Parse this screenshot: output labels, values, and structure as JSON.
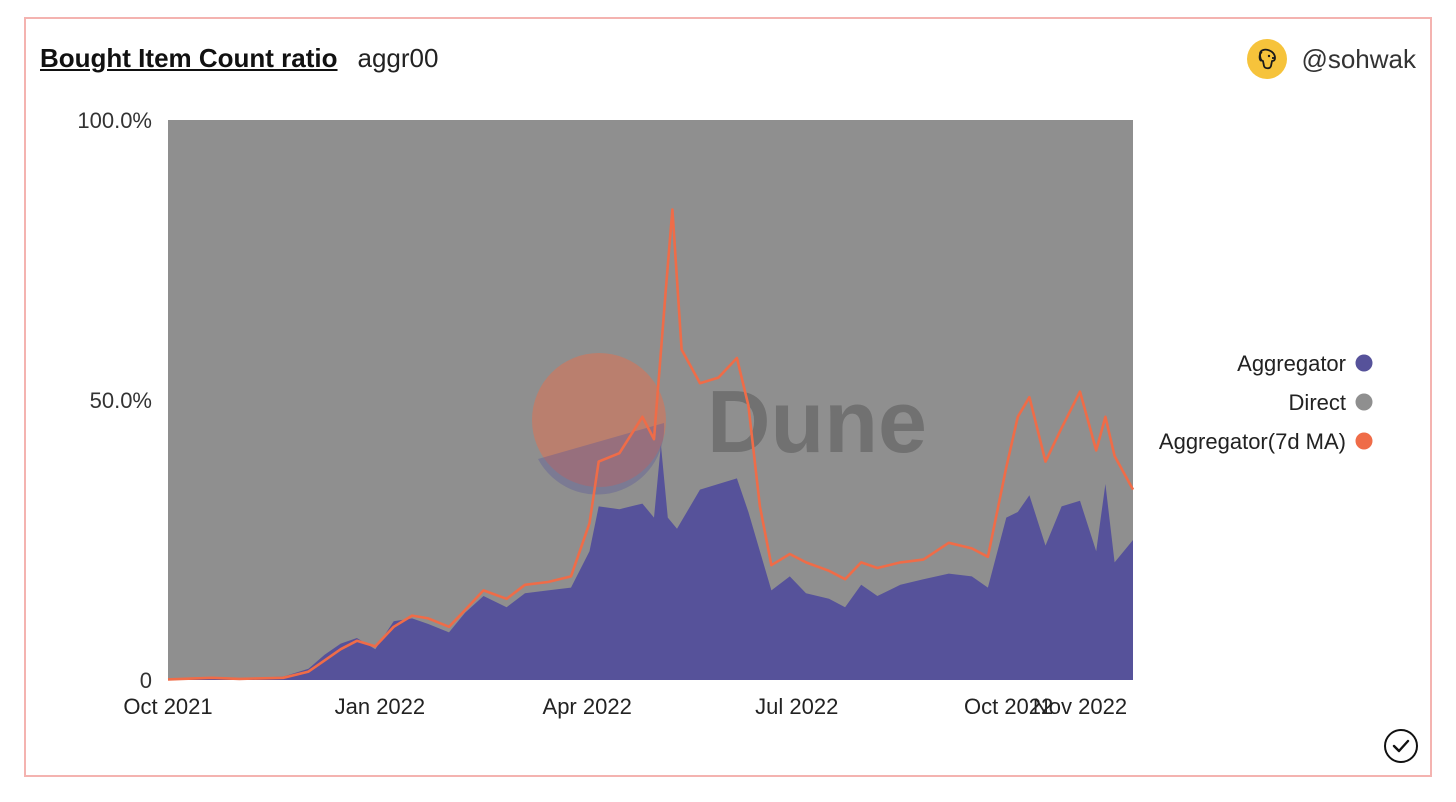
{
  "header": {
    "title": "Bought Item Count ratio",
    "subtitle": "aggr00",
    "author": "@sohwak"
  },
  "watermark": "Dune",
  "colors": {
    "aggregator": "#56529a",
    "direct": "#8f8f8f",
    "ma": "#ef6c48",
    "frame": "#f4b3b0",
    "avatar": "#f6c33b"
  },
  "chart_data": {
    "type": "area",
    "stacked_percent": true,
    "x_ticks": [
      {
        "label": "Oct 2021",
        "date": "2021-10-01"
      },
      {
        "label": "Jan 2022",
        "date": "2022-01-01"
      },
      {
        "label": "Apr 2022",
        "date": "2022-04-01"
      },
      {
        "label": "Jul 2022",
        "date": "2022-07-01"
      },
      {
        "label": "Oct 2022",
        "date": "2022-10-01"
      },
      {
        "label": "Nov 2022",
        "date": "2022-11-01"
      }
    ],
    "y_ticks": [
      {
        "label": "0",
        "value": 0
      },
      {
        "label": "50.0%",
        "value": 50
      },
      {
        "label": "100.0%",
        "value": 100
      }
    ],
    "x_range": [
      "2021-10-01",
      "2022-11-24"
    ],
    "ylim": [
      0,
      100
    ],
    "legend_position": "right",
    "series": [
      {
        "name": "Aggregator",
        "key": "aggregator",
        "kind": "area",
        "points": [
          [
            "2021-10-01",
            0.2
          ],
          [
            "2021-10-20",
            0.5
          ],
          [
            "2021-11-01",
            0.3
          ],
          [
            "2021-11-20",
            0.6
          ],
          [
            "2021-12-01",
            2
          ],
          [
            "2021-12-08",
            4.5
          ],
          [
            "2021-12-15",
            6.5
          ],
          [
            "2021-12-22",
            7.5
          ],
          [
            "2021-12-30",
            5.5
          ],
          [
            "2022-01-07",
            10.5
          ],
          [
            "2022-01-15",
            11
          ],
          [
            "2022-01-22",
            10
          ],
          [
            "2022-01-31",
            8.5
          ],
          [
            "2022-02-07",
            12
          ],
          [
            "2022-02-15",
            15
          ],
          [
            "2022-02-25",
            13
          ],
          [
            "2022-03-05",
            15.5
          ],
          [
            "2022-03-15",
            16
          ],
          [
            "2022-03-25",
            16.5
          ],
          [
            "2022-04-02",
            23
          ],
          [
            "2022-04-06",
            31
          ],
          [
            "2022-04-15",
            30.5
          ],
          [
            "2022-04-25",
            31.5
          ],
          [
            "2022-04-30",
            29
          ],
          [
            "2022-05-03",
            42
          ],
          [
            "2022-05-06",
            29
          ],
          [
            "2022-05-10",
            27
          ],
          [
            "2022-05-20",
            34
          ],
          [
            "2022-05-28",
            35
          ],
          [
            "2022-06-05",
            36
          ],
          [
            "2022-06-10",
            30
          ],
          [
            "2022-06-15",
            23
          ],
          [
            "2022-06-20",
            16
          ],
          [
            "2022-06-28",
            18.5
          ],
          [
            "2022-07-05",
            15.5
          ],
          [
            "2022-07-15",
            14.5
          ],
          [
            "2022-07-22",
            13
          ],
          [
            "2022-07-29",
            17
          ],
          [
            "2022-08-05",
            15
          ],
          [
            "2022-08-15",
            17
          ],
          [
            "2022-08-25",
            18
          ],
          [
            "2022-09-05",
            19
          ],
          [
            "2022-09-15",
            18.5
          ],
          [
            "2022-09-22",
            16.5
          ],
          [
            "2022-09-30",
            29
          ],
          [
            "2022-10-05",
            30
          ],
          [
            "2022-10-10",
            33
          ],
          [
            "2022-10-17",
            24
          ],
          [
            "2022-10-24",
            31
          ],
          [
            "2022-11-01",
            32
          ],
          [
            "2022-11-08",
            23
          ],
          [
            "2022-11-12",
            35
          ],
          [
            "2022-11-16",
            21
          ],
          [
            "2022-11-24",
            25
          ]
        ]
      },
      {
        "name": "Direct",
        "key": "direct",
        "kind": "area_fill"
      },
      {
        "name": "Aggregator(7d MA)",
        "key": "ma",
        "kind": "line",
        "points": [
          [
            "2021-10-01",
            0.1
          ],
          [
            "2021-10-20",
            0.4
          ],
          [
            "2021-11-01",
            0.2
          ],
          [
            "2021-11-20",
            0.4
          ],
          [
            "2021-12-01",
            1.5
          ],
          [
            "2021-12-08",
            3.5
          ],
          [
            "2021-12-15",
            5.5
          ],
          [
            "2021-12-22",
            7
          ],
          [
            "2021-12-30",
            6
          ],
          [
            "2022-01-07",
            9.5
          ],
          [
            "2022-01-15",
            11.5
          ],
          [
            "2022-01-22",
            11
          ],
          [
            "2022-01-31",
            9.5
          ],
          [
            "2022-02-07",
            12.5
          ],
          [
            "2022-02-15",
            16
          ],
          [
            "2022-02-25",
            14.5
          ],
          [
            "2022-03-05",
            17
          ],
          [
            "2022-03-15",
            17.5
          ],
          [
            "2022-03-25",
            18.5
          ],
          [
            "2022-04-02",
            28
          ],
          [
            "2022-04-06",
            39
          ],
          [
            "2022-04-15",
            40.5
          ],
          [
            "2022-04-25",
            47
          ],
          [
            "2022-04-30",
            43
          ],
          [
            "2022-05-05",
            69
          ],
          [
            "2022-05-08",
            84
          ],
          [
            "2022-05-12",
            59
          ],
          [
            "2022-05-20",
            53
          ],
          [
            "2022-05-28",
            54
          ],
          [
            "2022-06-05",
            57.5
          ],
          [
            "2022-06-10",
            49
          ],
          [
            "2022-06-15",
            31
          ],
          [
            "2022-06-20",
            20.5
          ],
          [
            "2022-06-28",
            22.5
          ],
          [
            "2022-07-05",
            21
          ],
          [
            "2022-07-15",
            19.5
          ],
          [
            "2022-07-22",
            18
          ],
          [
            "2022-07-29",
            21
          ],
          [
            "2022-08-05",
            20
          ],
          [
            "2022-08-15",
            21
          ],
          [
            "2022-08-25",
            21.5
          ],
          [
            "2022-09-05",
            24.5
          ],
          [
            "2022-09-15",
            23.5
          ],
          [
            "2022-09-22",
            22
          ],
          [
            "2022-09-30",
            38
          ],
          [
            "2022-10-05",
            47
          ],
          [
            "2022-10-10",
            50.5
          ],
          [
            "2022-10-17",
            39
          ],
          [
            "2022-10-24",
            45
          ],
          [
            "2022-11-01",
            51.5
          ],
          [
            "2022-11-08",
            41
          ],
          [
            "2022-11-12",
            47
          ],
          [
            "2022-11-16",
            40
          ],
          [
            "2022-11-24",
            34
          ]
        ]
      }
    ]
  }
}
